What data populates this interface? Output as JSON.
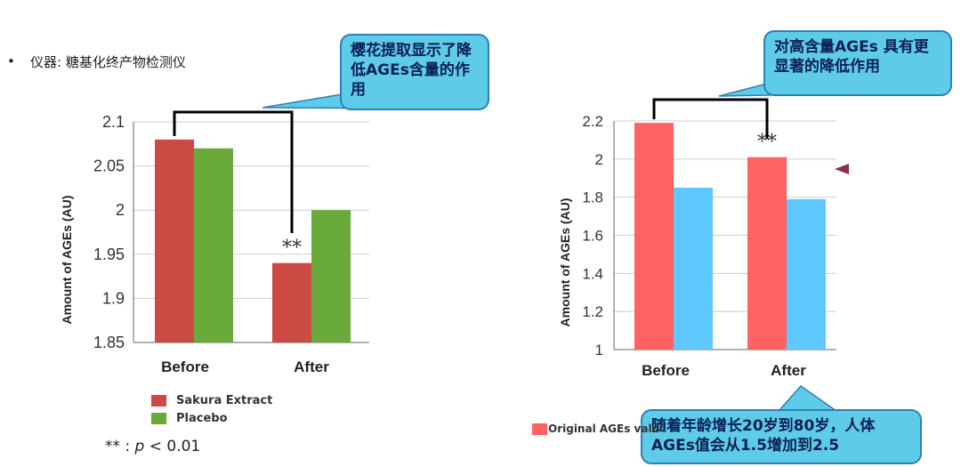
{
  "bullet": "•",
  "instrument_label": "仪器: 糖基化终产物检测仪",
  "callouts": {
    "left": "樱花提取显示了降低AGEs含量的作用",
    "right": "对高含量AGEs 具有更显著的降低作用",
    "bottom": "随着年龄增长20岁到80岁，人体AGEs值会从1.5增加到2.5"
  },
  "significance_note": {
    "prefix": "** : ",
    "p": "p",
    "rest": " < 0.01"
  },
  "chart_data": [
    {
      "type": "bar",
      "categories": [
        "Before",
        "After"
      ],
      "series": [
        {
          "name": "Sakura Extract",
          "values": [
            2.08,
            1.94
          ],
          "color": "#cc4a44"
        },
        {
          "name": "Placebo",
          "values": [
            2.07,
            2.0
          ],
          "color": "#6aaa3a"
        }
      ],
      "ylabel": "Amount of AGEs (AU)",
      "ylim": [
        1.85,
        2.1
      ],
      "yticks": [
        "2.1",
        "2.05",
        "2",
        "1.95",
        "1.9",
        "1.85"
      ],
      "ytick_values": [
        2.1,
        2.05,
        2.0,
        1.95,
        1.9,
        1.85
      ],
      "grid": true,
      "annotation": "**",
      "legend_position": "bottom-left"
    },
    {
      "type": "bar",
      "categories": [
        "Before",
        "After"
      ],
      "series": [
        {
          "name": "Original AGEs valu",
          "values": [
            2.19,
            2.01
          ],
          "color": "#ff6262"
        },
        {
          "values": [
            1.85,
            1.79
          ],
          "color": "#5fc8ff"
        }
      ],
      "ylabel": "Amount of AGEs (AU)",
      "ylim": [
        1.0,
        2.2
      ],
      "yticks": [
        "2.2",
        "2",
        "1.8",
        "1.6",
        "1.4",
        "1.2",
        "1"
      ],
      "ytick_values": [
        2.2,
        2.0,
        1.8,
        1.6,
        1.4,
        1.2,
        1.0
      ],
      "grid": true,
      "annotation": "**",
      "legend_position": "bottom-left"
    }
  ]
}
